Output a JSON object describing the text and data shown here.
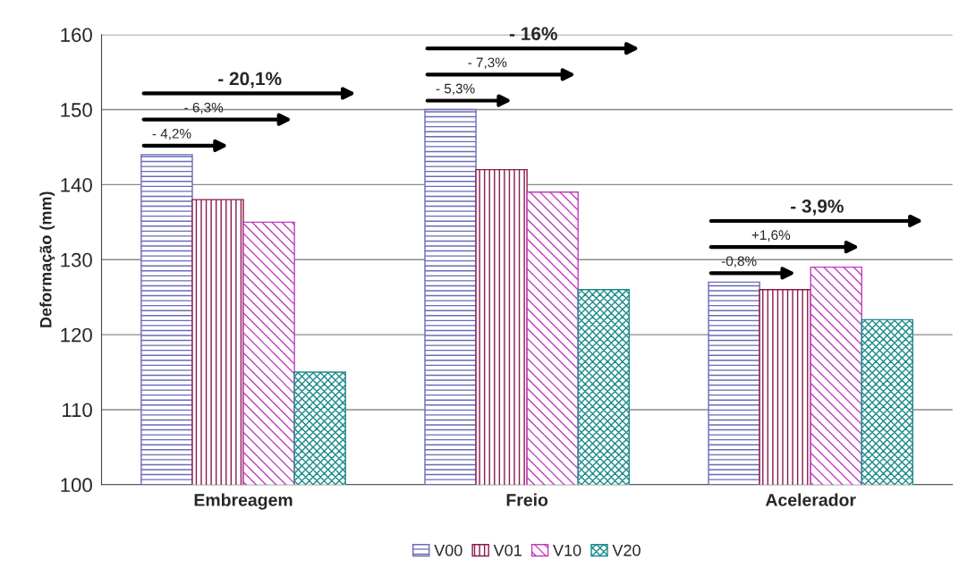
{
  "chart_data": {
    "type": "bar",
    "ylabel": "Deformação (mm)",
    "categories": [
      "Embreagem",
      "Freio",
      "Acelerador"
    ],
    "series": [
      {
        "name": "V00",
        "color": "#6a6ab8",
        "values": [
          144,
          150,
          127
        ]
      },
      {
        "name": "V01",
        "color": "#8a1a4a",
        "values": [
          138,
          142,
          126
        ]
      },
      {
        "name": "V10",
        "color": "#c03cc0",
        "values": [
          135,
          139,
          129
        ]
      },
      {
        "name": "V20",
        "color": "#1a8a8a",
        "values": [
          115,
          126,
          122
        ]
      }
    ],
    "ylim": [
      100,
      160
    ],
    "yticks": [
      100,
      110,
      120,
      130,
      140,
      150,
      160
    ],
    "grid": "y",
    "legend": "bottom",
    "annotations": [
      "- 4,2%",
      "- 6,3%",
      "- 20,1%",
      "- 5,3%",
      "- 7,3%",
      "- 16%",
      "-0,8%",
      "+1,6%",
      "- 3,9%"
    ]
  }
}
